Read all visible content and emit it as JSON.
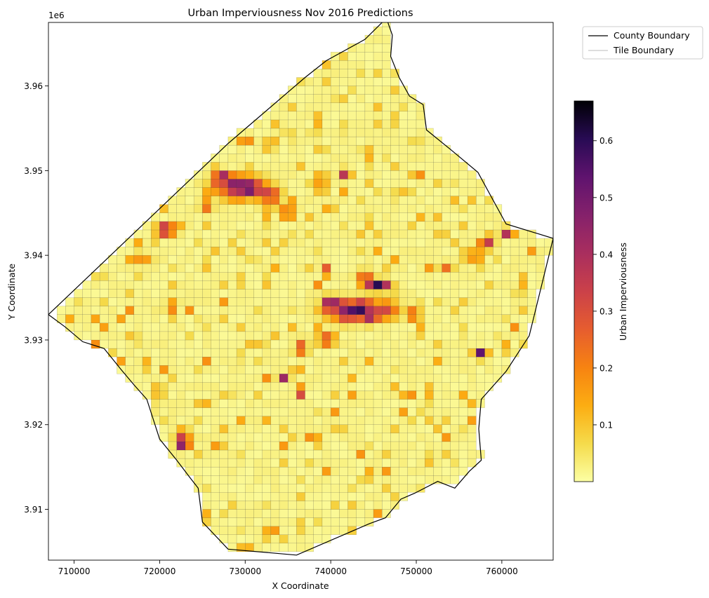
{
  "chart_data": {
    "type": "heatmap",
    "title": "Urban Imperviousness Nov 2016 Predictions",
    "xlabel": "X Coordinate",
    "ylabel": "Y Coordinate",
    "x_ticks": [
      710000,
      720000,
      730000,
      740000,
      750000,
      760000
    ],
    "x_tick_labels": [
      "710000",
      "720000",
      "730000",
      "740000",
      "750000",
      "760000"
    ],
    "y_ticks": [
      3.91,
      3.92,
      3.93,
      3.94,
      3.95,
      3.96
    ],
    "y_tick_labels": [
      "3.91",
      "3.92",
      "3.93",
      "3.94",
      "3.95",
      "3.96"
    ],
    "y_offset_label": "1e6",
    "xlim": [
      707000,
      766000
    ],
    "ylim": [
      3.904,
      3.9675
    ],
    "grid": false,
    "legend": {
      "placement": "outside-upper-right",
      "entries": [
        {
          "label": "County Boundary",
          "color": "#000000"
        },
        {
          "label": "Tile Boundary",
          "color": "#bbbbbb"
        }
      ]
    },
    "colorbar": {
      "label": "Urban Imperviousness",
      "colormap": "inferno_r",
      "range": [
        0.0,
        0.67
      ],
      "ticks": [
        0.1,
        0.2,
        0.3,
        0.4,
        0.5,
        0.6
      ],
      "tick_labels": [
        "0.1",
        "0.2",
        "0.3",
        "0.4",
        "0.5",
        "0.6"
      ]
    },
    "tile_size": 1000,
    "tile_value_background": 0.01,
    "boundary": [
      [
        707000,
        3.933
      ],
      [
        728000,
        3.9532
      ],
      [
        729500,
        3.9545
      ],
      [
        737000,
        3.961
      ],
      [
        739500,
        3.963
      ],
      [
        744000,
        3.9655
      ],
      [
        746500,
        3.968
      ],
      [
        747200,
        3.966
      ],
      [
        747000,
        3.9635
      ],
      [
        748000,
        3.961
      ],
      [
        749200,
        3.9588
      ],
      [
        750800,
        3.9578
      ],
      [
        751200,
        3.9548
      ],
      [
        754000,
        3.9525
      ],
      [
        757200,
        3.9498
      ],
      [
        760500,
        3.9437
      ],
      [
        766000,
        3.942
      ],
      [
        763200,
        3.9305
      ],
      [
        760500,
        3.9263
      ],
      [
        757600,
        3.923
      ],
      [
        757300,
        3.9195
      ],
      [
        757600,
        3.9158
      ],
      [
        756200,
        3.9145
      ],
      [
        754500,
        3.9125
      ],
      [
        752500,
        3.9133
      ],
      [
        749800,
        3.9119
      ],
      [
        748200,
        3.9112
      ],
      [
        746400,
        3.909
      ],
      [
        744500,
        3.9083
      ],
      [
        736000,
        3.9046
      ],
      [
        728000,
        3.9053
      ],
      [
        725000,
        3.9085
      ],
      [
        724500,
        3.9125
      ],
      [
        723500,
        3.9138
      ],
      [
        722000,
        3.9158
      ],
      [
        720000,
        3.9183
      ],
      [
        718500,
        3.923
      ],
      [
        717000,
        3.9247
      ],
      [
        715500,
        3.9265
      ],
      [
        713500,
        3.929
      ],
      [
        711000,
        3.9298
      ],
      [
        709000,
        3.9315
      ],
      [
        707000,
        3.933
      ]
    ],
    "hotspots": [
      {
        "x": 729500,
        "y": 3.948,
        "sx": 3000,
        "sy": 1400,
        "v": 0.55
      },
      {
        "x": 727200,
        "y": 3.9495,
        "sx": 800,
        "sy": 500,
        "v": 0.5
      },
      {
        "x": 733000,
        "y": 3.947,
        "sx": 1200,
        "sy": 900,
        "v": 0.35
      },
      {
        "x": 720800,
        "y": 3.943,
        "sx": 1200,
        "sy": 700,
        "v": 0.6
      },
      {
        "x": 735000,
        "y": 3.945,
        "sx": 800,
        "sy": 700,
        "v": 0.45
      },
      {
        "x": 743000,
        "y": 3.9335,
        "sx": 3600,
        "sy": 1300,
        "v": 0.6
      },
      {
        "x": 739500,
        "y": 3.93,
        "sx": 1200,
        "sy": 700,
        "v": 0.4
      },
      {
        "x": 745500,
        "y": 3.9365,
        "sx": 1600,
        "sy": 700,
        "v": 0.55
      },
      {
        "x": 740000,
        "y": 3.9345,
        "sx": 900,
        "sy": 800,
        "v": 0.45
      },
      {
        "x": 744000,
        "y": 3.9378,
        "sx": 900,
        "sy": 500,
        "v": 0.5
      },
      {
        "x": 749800,
        "y": 3.933,
        "sx": 700,
        "sy": 600,
        "v": 0.55
      },
      {
        "x": 722800,
        "y": 3.918,
        "sx": 1000,
        "sy": 700,
        "v": 0.62
      },
      {
        "x": 757000,
        "y": 3.94,
        "sx": 700,
        "sy": 600,
        "v": 0.55
      },
      {
        "x": 760500,
        "y": 3.9428,
        "sx": 800,
        "sy": 500,
        "v": 0.5
      },
      {
        "x": 758600,
        "y": 3.9413,
        "sx": 700,
        "sy": 500,
        "v": 0.45
      },
      {
        "x": 757500,
        "y": 3.9285,
        "sx": 900,
        "sy": 500,
        "v": 0.45
      },
      {
        "x": 734500,
        "y": 3.9255,
        "sx": 700,
        "sy": 500,
        "v": 0.45
      },
      {
        "x": 736500,
        "y": 3.9235,
        "sx": 500,
        "sy": 500,
        "v": 0.35
      },
      {
        "x": 732800,
        "y": 3.953,
        "sx": 700,
        "sy": 500,
        "v": 0.35
      },
      {
        "x": 739000,
        "y": 3.949,
        "sx": 900,
        "sy": 700,
        "v": 0.25
      },
      {
        "x": 741500,
        "y": 3.9495,
        "sx": 500,
        "sy": 700,
        "v": 0.35
      },
      {
        "x": 725500,
        "y": 3.9458,
        "sx": 800,
        "sy": 500,
        "v": 0.3
      },
      {
        "x": 736500,
        "y": 3.929,
        "sx": 800,
        "sy": 900,
        "v": 0.3
      },
      {
        "x": 721400,
        "y": 3.934,
        "sx": 700,
        "sy": 600,
        "v": 0.35
      },
      {
        "x": 719800,
        "y": 3.922,
        "sx": 400,
        "sy": 400,
        "v": 0.4
      },
      {
        "x": 718000,
        "y": 3.9395,
        "sx": 1200,
        "sy": 700,
        "v": 0.2
      },
      {
        "x": 739500,
        "y": 3.9383,
        "sx": 400,
        "sy": 600,
        "v": 0.35
      },
      {
        "x": 747000,
        "y": 3.9335,
        "sx": 1500,
        "sy": 1200,
        "v": 0.15
      },
      {
        "x": 753500,
        "y": 3.9385,
        "sx": 900,
        "sy": 600,
        "v": 0.2
      }
    ]
  }
}
